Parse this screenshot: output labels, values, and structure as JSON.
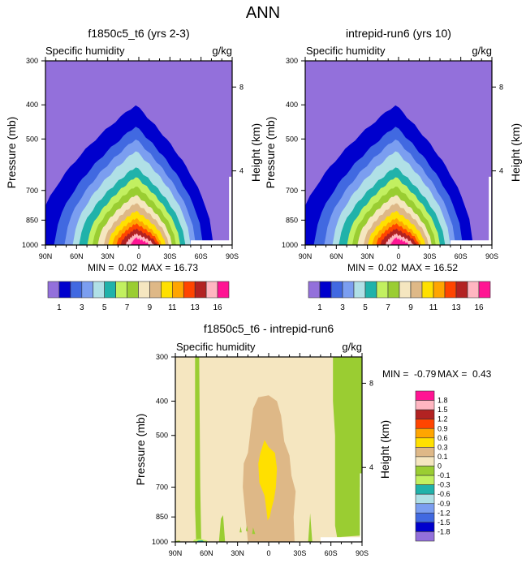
{
  "figure": {
    "title": "ANN",
    "variable_label": "Specific humidity",
    "units_label": "g/kg"
  },
  "palette": {
    "main": [
      "#9370DB",
      "#0000CD",
      "#4169E1",
      "#7B9EF0",
      "#B0E0E6",
      "#20B2AA",
      "#C2F060",
      "#9ACD32",
      "#F5E6C0",
      "#DEB887",
      "#FFE000",
      "#FFA500",
      "#FF4500",
      "#B22222",
      "#FFB6C1",
      "#FF1493"
    ],
    "diff": [
      "#9370DB",
      "#0000CD",
      "#4169E1",
      "#7B9EF0",
      "#B0E0E6",
      "#20B2AA",
      "#C2F060",
      "#9ACD32",
      "#F5E6C0",
      "#DEB887",
      "#FFE000",
      "#FFA500",
      "#FF4500",
      "#B22222",
      "#FFB6C1",
      "#FF1493"
    ]
  },
  "chart_data": [
    {
      "id": "panel-case",
      "type": "heatmap",
      "title": "f1850c5_t6 (yrs 2-3)",
      "left_label": "Specific humidity",
      "right_label": "g/kg",
      "xlabel": "",
      "ylabel": "Pressure (mb)",
      "y2label": "Height (km)",
      "x_ticks": [
        "90N",
        "60N",
        "30N",
        "0",
        "30S",
        "60S",
        "90S"
      ],
      "x_range": [
        90,
        -90
      ],
      "y_ticks": [
        300,
        400,
        500,
        700,
        850,
        1000
      ],
      "y_range": [
        300,
        1000
      ],
      "y_scale": "log",
      "y2_ticks": [
        8,
        4
      ],
      "min_label": "MIN =",
      "min_value": "0.02",
      "max_label": "MAX =",
      "max_value": "16.73",
      "colorbar_orientation": "horizontal",
      "colorbar_labels": [
        "1",
        "3",
        "5",
        "7",
        "9",
        "11",
        "13",
        "16"
      ],
      "contour_levels": [
        0.5,
        1,
        2,
        3,
        4,
        5,
        6,
        7,
        8,
        9,
        10,
        11,
        12,
        13,
        14,
        16
      ],
      "peak_value_approx": 16.73,
      "peak_location": {
        "lat": 3,
        "pressure": 1000
      },
      "missing_region": {
        "lat": [
          -50,
          -90
        ],
        "pressure": [
          970,
          1000
        ]
      }
    },
    {
      "id": "panel-control",
      "type": "heatmap",
      "title": "intrepid-run6 (yrs 10)",
      "left_label": "Specific humidity",
      "right_label": "g/kg",
      "xlabel": "",
      "ylabel": "Pressure (mb)",
      "y2label": "Height (km)",
      "x_ticks": [
        "90N",
        "60N",
        "30N",
        "0",
        "30S",
        "60S",
        "90S"
      ],
      "x_range": [
        90,
        -90
      ],
      "y_ticks": [
        300,
        400,
        500,
        700,
        850,
        1000
      ],
      "y_range": [
        300,
        1000
      ],
      "y_scale": "log",
      "y2_ticks": [
        8,
        4
      ],
      "min_label": "MIN =",
      "min_value": "0.02",
      "max_label": "MAX =",
      "max_value": "16.52",
      "colorbar_orientation": "horizontal",
      "colorbar_labels": [
        "1",
        "3",
        "5",
        "7",
        "9",
        "11",
        "13",
        "16"
      ],
      "contour_levels": [
        0.5,
        1,
        2,
        3,
        4,
        5,
        6,
        7,
        8,
        9,
        10,
        11,
        12,
        13,
        14,
        16
      ],
      "peak_value_approx": 16.52,
      "peak_location": {
        "lat": 3,
        "pressure": 1000
      },
      "missing_region": {
        "lat": [
          -50,
          -90
        ],
        "pressure": [
          970,
          1000
        ]
      }
    },
    {
      "id": "panel-diff",
      "type": "heatmap",
      "title": "f1850c5_t6 - intrepid-run6",
      "left_label": "Specific humidity",
      "right_label": "g/kg",
      "xlabel": "",
      "ylabel": "Pressure (mb)",
      "y2label": "Height (km)",
      "x_ticks": [
        "90N",
        "60N",
        "30N",
        "0",
        "30S",
        "60S",
        "90S"
      ],
      "x_range": [
        90,
        -90
      ],
      "y_ticks": [
        300,
        400,
        500,
        700,
        850,
        1000
      ],
      "y_range": [
        300,
        1000
      ],
      "y_scale": "log",
      "y2_ticks": [
        8,
        4
      ],
      "min_label": "MIN =",
      "min_value": "-0.79",
      "max_label": "MAX =",
      "max_value": "0.43",
      "colorbar_orientation": "vertical",
      "colorbar_labels": [
        "1.8",
        "1.5",
        "1.2",
        "0.9",
        "0.6",
        "0.3",
        "0.1",
        "0",
        "-0.1",
        "-0.3",
        "-0.6",
        "-0.9",
        "-1.2",
        "-1.5",
        "-1.8"
      ],
      "regions": [
        {
          "value_range": "0 to 0.1",
          "description": "background"
        },
        {
          "value_range": "0.1 to 0.3",
          "lat": [
            20,
            -25
          ],
          "pressure": [
            380,
            1000
          ]
        },
        {
          "value_range": "0.3 to 0.6",
          "lat": [
            10,
            -8
          ],
          "pressure": [
            520,
            880
          ]
        },
        {
          "value_range": "-0.1 to 0",
          "lat": [
            70,
            64
          ],
          "pressure": [
            300,
            1000
          ]
        },
        {
          "value_range": "-0.1 to 0",
          "lat": [
            -62,
            -90
          ],
          "pressure": [
            300,
            970
          ]
        }
      ],
      "missing_region": {
        "lat": [
          -50,
          -90
        ],
        "pressure": [
          970,
          1000
        ]
      }
    }
  ]
}
